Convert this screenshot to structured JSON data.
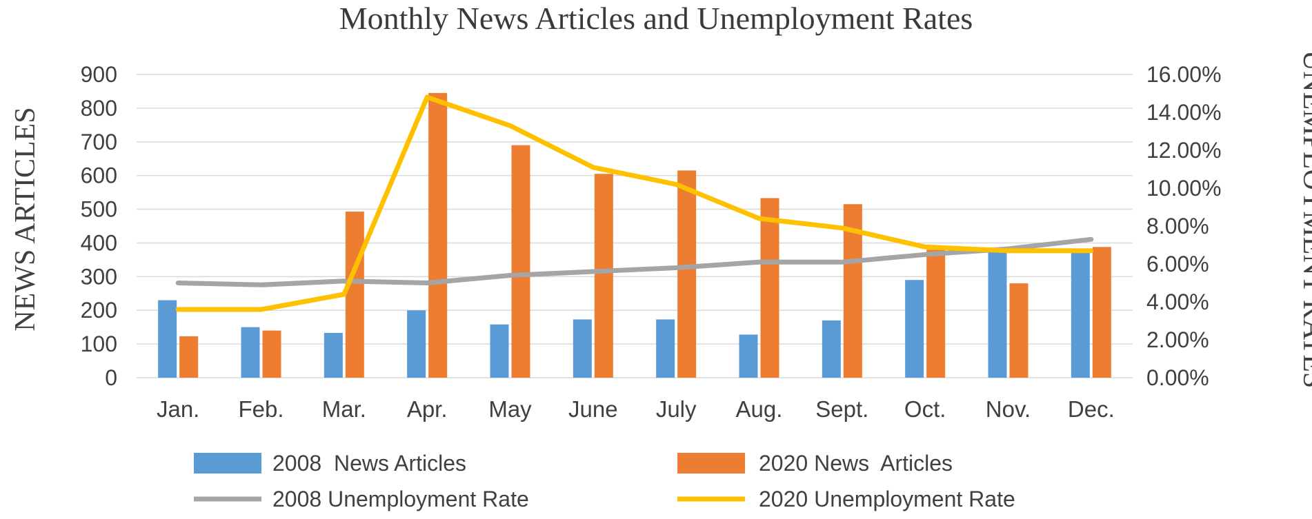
{
  "chart_data": {
    "type": "bar",
    "title": "Monthly News Articles and Unemployment Rates",
    "ylabel_left": "NEWS ARTICLES",
    "ylabel_right": "UNEMPLOYMENT RATES",
    "categories": [
      "Jan.",
      "Feb.",
      "Mar.",
      "Apr.",
      "May",
      "June",
      "July",
      "Aug.",
      "Sept.",
      "Oct.",
      "Nov.",
      "Dec."
    ],
    "ylim_left": [
      0,
      900
    ],
    "yticks_left": [
      0,
      100,
      200,
      300,
      400,
      500,
      600,
      700,
      800,
      900
    ],
    "ylim_right": [
      0,
      16
    ],
    "yticks_right": [
      "0.00%",
      "2.00%",
      "4.00%",
      "6.00%",
      "8.00%",
      "10.00%",
      "12.00%",
      "14.00%",
      "16.00%"
    ],
    "grid": "horizontal",
    "legend_position": "bottom",
    "series": [
      {
        "name": "2008  News Articles",
        "kind": "bar",
        "axis": "left",
        "color": "#5B9BD5",
        "values": [
          230,
          150,
          133,
          200,
          158,
          173,
          173,
          128,
          170,
          290,
          380,
          375
        ]
      },
      {
        "name": "2020 News  Articles",
        "kind": "bar",
        "axis": "left",
        "color": "#ED7D31",
        "values": [
          123,
          140,
          493,
          845,
          690,
          605,
          615,
          533,
          515,
          380,
          280,
          388
        ]
      },
      {
        "name": "2008 Unemployment Rate",
        "kind": "line",
        "axis": "right",
        "color": "#A5A5A5",
        "unit": "%",
        "values": [
          5.0,
          4.9,
          5.1,
          5.0,
          5.4,
          5.6,
          5.8,
          6.1,
          6.1,
          6.5,
          6.8,
          7.3
        ]
      },
      {
        "name": "2020 Unemployment Rate",
        "kind": "line",
        "axis": "right",
        "color": "#FFC000",
        "unit": "%",
        "values": [
          3.6,
          3.6,
          4.4,
          14.8,
          13.3,
          11.1,
          10.2,
          8.4,
          7.9,
          6.9,
          6.7,
          6.7
        ]
      }
    ]
  }
}
